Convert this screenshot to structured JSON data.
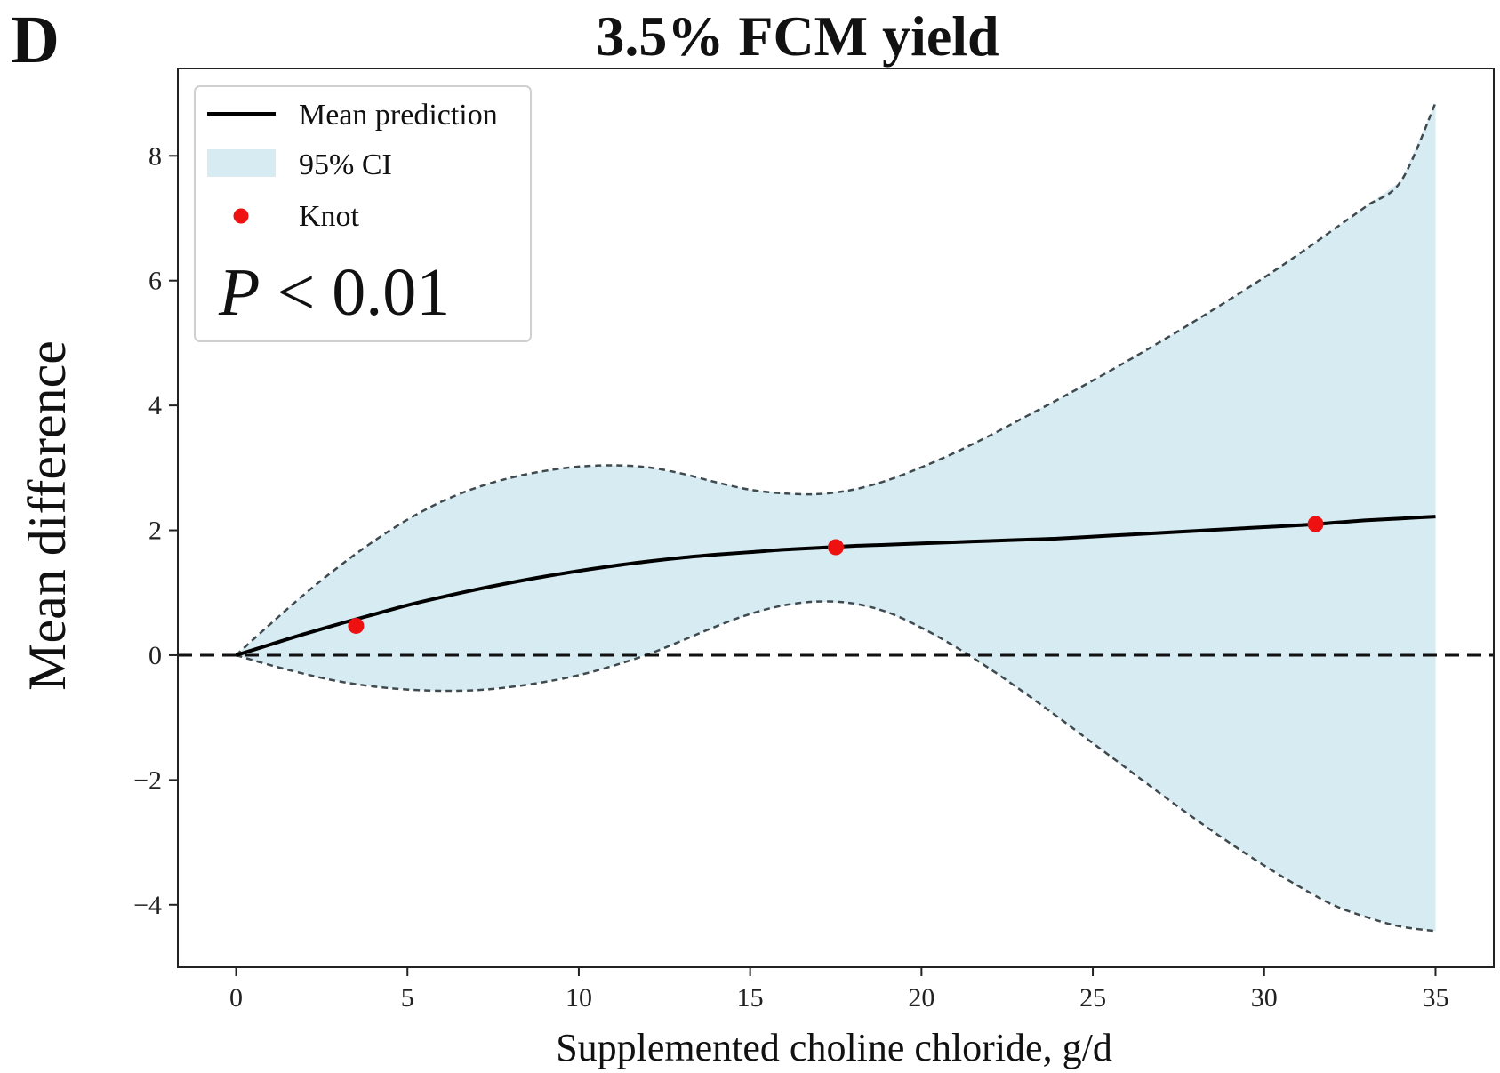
{
  "panel_letter": "D",
  "chart_data": {
    "type": "line",
    "title": "3.5% FCM yield",
    "xlabel": "Supplemented choline chloride, g/d",
    "ylabel": "Mean difference",
    "xlim": [
      -1.7,
      36.7
    ],
    "ylim": [
      -5.0,
      9.4
    ],
    "xticks": [
      0,
      5,
      10,
      15,
      20,
      25,
      30,
      35
    ],
    "xtick_labels": [
      "0",
      "5",
      "10",
      "15",
      "20",
      "25",
      "30",
      "35"
    ],
    "yticks": [
      -4,
      -2,
      0,
      2,
      4,
      6,
      8
    ],
    "ytick_labels": [
      "−4",
      "−2",
      "0",
      "2",
      "4",
      "6",
      "8"
    ],
    "grid": false,
    "legend_placement": "top-left",
    "legend": {
      "mean_label": "Mean prediction",
      "ci_label": "95% CI",
      "knot_label": "Knot"
    },
    "annotation": {
      "p_symbol": "P",
      "p_rest": " < 0.01"
    },
    "reference_line_y": 0,
    "x": [
      0,
      1,
      2,
      3,
      4,
      5,
      6,
      7,
      8,
      9,
      10,
      11,
      12,
      13,
      14,
      15,
      16,
      17,
      18,
      19,
      20,
      21,
      22,
      23,
      24,
      25,
      26,
      27,
      28,
      29,
      30,
      31,
      32,
      33,
      34,
      35
    ],
    "series": [
      {
        "name": "Mean prediction",
        "values": [
          0,
          0.17,
          0.34,
          0.5,
          0.65,
          0.8,
          0.93,
          1.05,
          1.16,
          1.26,
          1.35,
          1.43,
          1.5,
          1.56,
          1.61,
          1.65,
          1.69,
          1.72,
          1.75,
          1.77,
          1.79,
          1.81,
          1.83,
          1.85,
          1.87,
          1.9,
          1.93,
          1.96,
          1.99,
          2.02,
          2.05,
          2.08,
          2.12,
          2.16,
          2.19,
          2.22
        ]
      },
      {
        "name": "CI upper",
        "values": [
          0,
          0.5,
          0.98,
          1.42,
          1.82,
          2.17,
          2.46,
          2.68,
          2.84,
          2.95,
          3.02,
          3.04,
          3.01,
          2.91,
          2.77,
          2.65,
          2.59,
          2.58,
          2.65,
          2.8,
          3.01,
          3.25,
          3.52,
          3.81,
          4.1,
          4.4,
          4.71,
          5.03,
          5.36,
          5.7,
          6.05,
          6.42,
          6.81,
          7.2,
          7.6,
          8.85
        ]
      },
      {
        "name": "CI lower",
        "values": [
          0,
          -0.16,
          -0.3,
          -0.42,
          -0.5,
          -0.55,
          -0.57,
          -0.56,
          -0.51,
          -0.43,
          -0.32,
          -0.17,
          0.01,
          0.23,
          0.46,
          0.66,
          0.8,
          0.86,
          0.83,
          0.69,
          0.44,
          0.13,
          -0.22,
          -0.6,
          -1.0,
          -1.41,
          -1.82,
          -2.23,
          -2.63,
          -3.01,
          -3.37,
          -3.7,
          -4.0,
          -4.2,
          -4.35,
          -4.42
        ]
      }
    ],
    "knots": {
      "x": [
        3.5,
        17.5,
        31.5
      ],
      "y": [
        0.47,
        1.73,
        2.1
      ]
    },
    "colors": {
      "mean": "#000000",
      "ci_fill": "#d6ebf2",
      "ci_edge": "#3f4a4f",
      "knot": "#ee1111",
      "reference": "#111111"
    }
  }
}
